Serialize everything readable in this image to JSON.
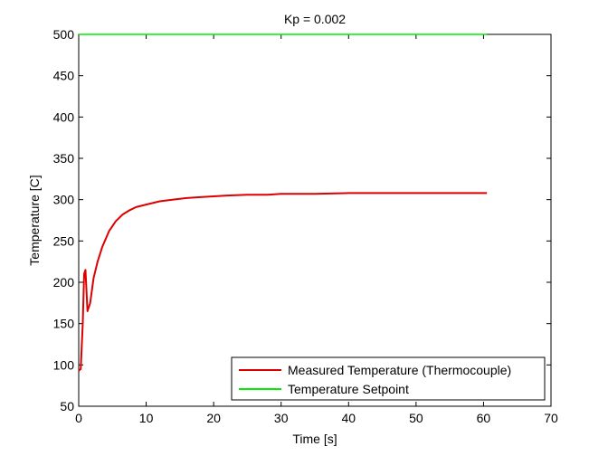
{
  "chart_data": {
    "type": "line",
    "title": "Kp = 0.002",
    "xlabel": "Time [s]",
    "ylabel": "Temperature [C]",
    "xlim": [
      0,
      70
    ],
    "ylim": [
      50,
      500
    ],
    "xticks": [
      0,
      10,
      20,
      30,
      40,
      50,
      60,
      70
    ],
    "yticks": [
      50,
      100,
      150,
      200,
      250,
      300,
      350,
      400,
      450,
      500
    ],
    "grid": false,
    "legend_position": "bottom-right",
    "series": [
      {
        "name": "Measured Temperature (Thermocouple)",
        "color": "#dd0000",
        "x": [
          0,
          0.3,
          0.6,
          0.8,
          1.0,
          1.3,
          1.7,
          2.2,
          2.8,
          3.5,
          4.5,
          5.5,
          6.5,
          7.5,
          8.5,
          10,
          12,
          14,
          16,
          18,
          20,
          22,
          25,
          28,
          30,
          35,
          40,
          45,
          50,
          55,
          60,
          60.5
        ],
        "y": [
          93,
          95,
          150,
          210,
          215,
          165,
          175,
          205,
          225,
          243,
          262,
          274,
          282,
          287,
          291,
          294,
          298,
          300,
          302,
          303,
          304,
          305,
          306,
          306,
          307,
          307,
          308,
          308,
          308,
          308,
          308,
          308
        ]
      },
      {
        "name": "Temperature Setpoint",
        "color": "#00ee00",
        "x": [
          0,
          60.5
        ],
        "y": [
          500,
          500
        ]
      }
    ]
  }
}
